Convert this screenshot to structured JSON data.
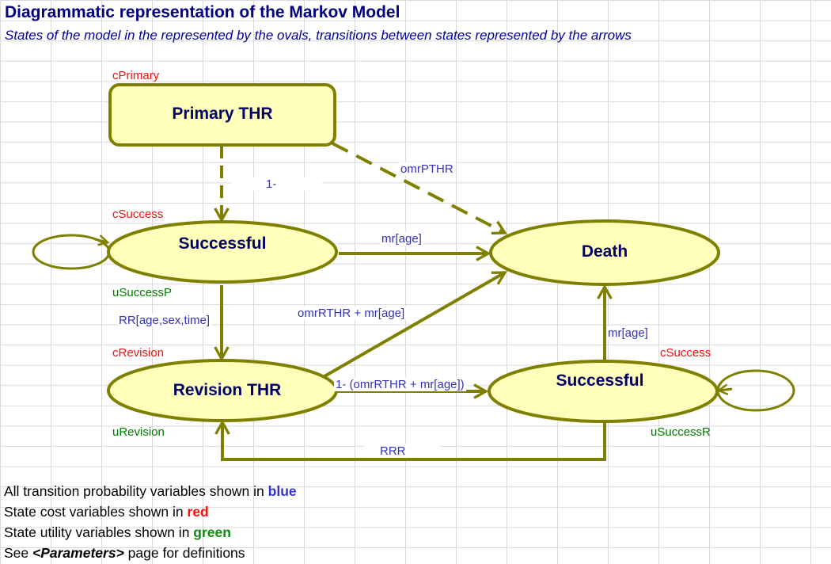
{
  "title": "Diagrammatic representation of the Markov Model",
  "subtitle": "States of the model in the represented by the ovals, transitions between states represented by the arrows",
  "states": {
    "primary": "Primary THR",
    "successful1": "Successful",
    "death": "Death",
    "revision": "Revision THR",
    "successful2": "Successful"
  },
  "cost_vars": {
    "primary": "cPrimary",
    "successful1": "cSuccess",
    "revision": "cRevision",
    "successful2": "cSuccess"
  },
  "utility_vars": {
    "successful1": "uSuccessP",
    "revision": "uRevision",
    "successful2": "uSuccessR"
  },
  "transitions": {
    "primary_to_successful": "1-",
    "primary_to_death": "omrPTHR",
    "successful_to_death": "mr[age]",
    "successful_to_revision": "RR[age,sex,time]",
    "revision_to_death": "omrRTHR + mr[age]",
    "revision_to_successful": "1- (omrRTHR + mr[age])",
    "successful2_to_death": "mr[age]",
    "successful2_to_revision": "RRR"
  },
  "colors": {
    "node_fill": "#ffffbb",
    "node_stroke": "#808000",
    "arrow": "#808000",
    "transition_text": "#3333bb",
    "cost_text": "#ee1111",
    "utility_text": "#007a00",
    "title_text": "#000080"
  },
  "footer": {
    "line1_prefix": "All transition probability variables shown in ",
    "line1_emph": "blue",
    "line2_prefix": "State cost variables shown in ",
    "line2_emph": "red",
    "line3_prefix": "State utility variables shown in ",
    "line3_emph": "green",
    "line4_prefix": "See ",
    "line4_emph": "<Parameters>",
    "line4_suffix": " page for definitions"
  }
}
